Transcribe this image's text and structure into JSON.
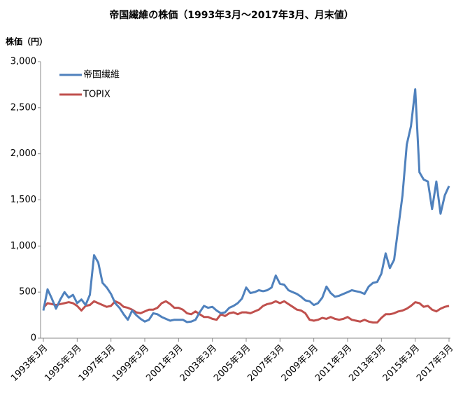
{
  "chart_data": {
    "type": "line",
    "title": "帝国繊維の株価（1993年3月～2017年3月、月末値）",
    "y_label": "株価（円）",
    "categories": [
      "1993年3月",
      null,
      null,
      null,
      null,
      null,
      null,
      null,
      "1995年3月",
      null,
      null,
      null,
      null,
      null,
      null,
      null,
      "1997年3月",
      null,
      null,
      null,
      null,
      null,
      null,
      null,
      "1999年3月",
      null,
      null,
      null,
      null,
      null,
      null,
      null,
      "2001年3月",
      null,
      null,
      null,
      null,
      null,
      null,
      null,
      "2003年3月",
      null,
      null,
      null,
      null,
      null,
      null,
      null,
      "2005年3月",
      null,
      null,
      null,
      null,
      null,
      null,
      null,
      "2007年3月",
      null,
      null,
      null,
      null,
      null,
      null,
      null,
      "2009年3月",
      null,
      null,
      null,
      null,
      null,
      null,
      null,
      "2011年3月",
      null,
      null,
      null,
      null,
      null,
      null,
      null,
      "2013年3月",
      null,
      null,
      null,
      null,
      null,
      null,
      null,
      "2015年3月",
      null,
      null,
      null,
      null,
      null,
      null,
      null,
      "2017年3月"
    ],
    "series": [
      {
        "name": "帝国繊維",
        "color": "#4f81bd",
        "values": [
          300,
          530,
          430,
          320,
          420,
          500,
          440,
          470,
          380,
          420,
          360,
          470,
          900,
          820,
          600,
          550,
          480,
          380,
          330,
          260,
          200,
          300,
          250,
          210,
          180,
          200,
          270,
          260,
          230,
          210,
          190,
          200,
          200,
          200,
          175,
          180,
          200,
          280,
          350,
          330,
          340,
          300,
          270,
          280,
          330,
          350,
          380,
          430,
          550,
          490,
          500,
          520,
          510,
          520,
          550,
          680,
          590,
          580,
          520,
          500,
          480,
          450,
          410,
          400,
          360,
          380,
          440,
          560,
          490,
          450,
          460,
          480,
          500,
          520,
          510,
          500,
          480,
          560,
          600,
          610,
          700,
          920,
          760,
          850,
          1200,
          1550,
          2100,
          2300,
          2700,
          1800,
          1720,
          1700,
          1400,
          1700,
          1350,
          1550,
          1650
        ]
      },
      {
        "name": "TOPIX",
        "color": "#c0504d",
        "values": [
          330,
          380,
          370,
          360,
          370,
          380,
          390,
          380,
          350,
          300,
          350,
          360,
          400,
          380,
          360,
          340,
          350,
          400,
          380,
          340,
          330,
          310,
          280,
          270,
          290,
          310,
          310,
          330,
          380,
          400,
          370,
          330,
          330,
          310,
          270,
          260,
          290,
          260,
          230,
          230,
          210,
          200,
          260,
          240,
          270,
          280,
          260,
          280,
          280,
          270,
          290,
          310,
          350,
          370,
          380,
          400,
          380,
          400,
          370,
          340,
          310,
          300,
          270,
          200,
          190,
          200,
          220,
          210,
          230,
          210,
          200,
          210,
          230,
          200,
          190,
          180,
          200,
          180,
          170,
          170,
          220,
          260,
          260,
          270,
          290,
          300,
          320,
          350,
          390,
          380,
          340,
          350,
          310,
          290,
          320,
          340,
          350
        ]
      }
    ],
    "ylim": [
      0,
      3000
    ],
    "yticks": [
      0,
      500,
      {
        "value": 1000,
        "label": "1,000"
      },
      {
        "value": 1500,
        "label": "1,500"
      },
      {
        "value": 2000,
        "label": "2,000"
      },
      {
        "value": 2500,
        "label": "2,500"
      },
      {
        "value": 3000,
        "label": "3,000"
      }
    ],
    "grid": false,
    "legend": "upper left"
  }
}
